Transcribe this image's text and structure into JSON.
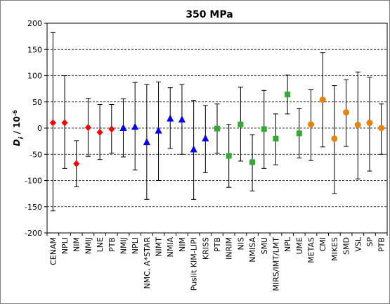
{
  "chart_data": {
    "type": "scatter",
    "title": "350 MPa",
    "ylabel_main": "D",
    "ylabel_sub": "i",
    "ylabel_unit": " / 10",
    "ylabel_exp": "-6",
    "ylim": [
      -200,
      200
    ],
    "yticks": [
      -200,
      -150,
      -100,
      -50,
      0,
      50,
      100,
      150,
      200
    ],
    "grid": "horizontal dashed",
    "categories": [
      "CENAM",
      "NPLI",
      "NIM",
      "NMIJ",
      "LNE",
      "PTB",
      "NMIJ",
      "NPLI",
      "NMC, A*STAR",
      "NIMT",
      "NMIA",
      "NIM",
      "Puslit KIM-LIPI",
      "KRISS",
      "PTB",
      "INRIM",
      "NIS",
      "NMISA",
      "SMU",
      "MIRS/IMT/LMT",
      "NPL",
      "UME",
      "METAS",
      "CMI",
      "MIKES",
      "SMD",
      "VSL",
      "SP",
      "PTB"
    ],
    "colors": {
      "red-diamond": "#ff0000",
      "blue-triangle": "#0000ff",
      "green-square": "#33aa33",
      "orange-circle": "#e8820c"
    },
    "series": [
      {
        "marker": "red-diamond",
        "indices": [
          0,
          1,
          2,
          3,
          4,
          5
        ],
        "values": [
          10,
          10,
          -68,
          1,
          -8,
          -2
        ],
        "upper": [
          182,
          100,
          -24,
          57,
          45,
          45
        ],
        "lower": [
          -158,
          -77,
          -112,
          -54,
          -60,
          -48
        ]
      },
      {
        "marker": "blue-triangle",
        "indices": [
          6,
          7,
          8,
          9,
          10,
          11,
          12,
          13
        ],
        "values": [
          0,
          2,
          -27,
          -5,
          18,
          16,
          -41,
          -20
        ],
        "upper": [
          56,
          87,
          83,
          88,
          77,
          83,
          53,
          43
        ],
        "lower": [
          -55,
          -80,
          -136,
          -100,
          -39,
          -50,
          -136,
          -85
        ]
      },
      {
        "marker": "green-square",
        "indices": [
          14,
          15,
          16,
          17,
          18,
          19,
          20,
          21
        ],
        "values": [
          -1,
          -53,
          7,
          -65,
          -2,
          -20,
          64,
          -10
        ],
        "upper": [
          46,
          7,
          78,
          -13,
          72,
          27,
          101,
          37
        ],
        "lower": [
          -48,
          -113,
          -63,
          -120,
          -77,
          -70,
          27,
          -57
        ]
      },
      {
        "marker": "orange-circle",
        "indices": [
          22,
          23,
          24,
          25,
          26,
          27,
          28
        ],
        "values": [
          7,
          54,
          -20,
          30,
          6,
          10,
          0
        ],
        "upper": [
          73,
          144,
          81,
          92,
          107,
          97,
          46
        ],
        "lower": [
          -62,
          -36,
          -125,
          -35,
          -97,
          -82,
          -50
        ]
      }
    ]
  }
}
